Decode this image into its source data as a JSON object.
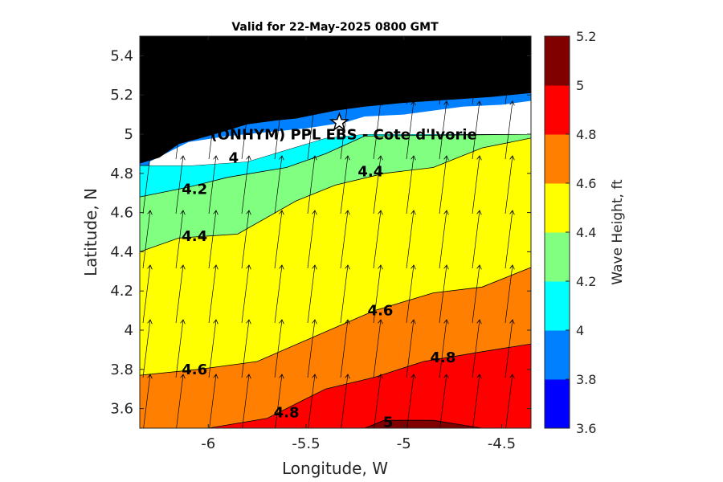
{
  "chart_data": {
    "type": "contour",
    "title": "Valid for 22-May-2025 0800 GMT",
    "xlabel": "Longitude, W",
    "ylabel": "Latitude, N",
    "colorbar_label": "Wave Height, ft",
    "xlim": [
      -6.35,
      -4.35
    ],
    "ylim": [
      3.5,
      5.5
    ],
    "x_ticks": [
      -6,
      -5.5,
      -5,
      -4.5
    ],
    "x_tick_labels": [
      "-6",
      "-5.5",
      "-5",
      "-4.5"
    ],
    "y_ticks": [
      3.6,
      3.8,
      4.0,
      4.2,
      4.4,
      4.6,
      4.8,
      5.0,
      5.2,
      5.4
    ],
    "y_tick_labels": [
      "3.6",
      "3.8",
      "4",
      "4.2",
      "4.4",
      "4.6",
      "4.8",
      "5",
      "5.2",
      "5.4"
    ],
    "colorbar": {
      "levels": [
        3.6,
        3.8,
        4.0,
        4.2,
        4.4,
        4.6,
        4.8,
        5.0,
        5.2
      ],
      "tick_labels": [
        "3.6",
        "3.8",
        "4",
        "4.2",
        "4.4",
        "4.6",
        "4.8",
        "5",
        "5.2"
      ],
      "colors": [
        "#0000ff",
        "#0080ff",
        "#00ffff",
        "#80ff80",
        "#ffff00",
        "#ff8000",
        "#ff0000",
        "#800000"
      ]
    },
    "land_color": "#000000",
    "nodata_color": "#ffffff",
    "contours": [
      {
        "level": 4.0,
        "x": [
          -6.35,
          -6.08,
          -5.8,
          -5.4,
          -5.2,
          -4.35
        ],
        "y": [
          4.84,
          4.84,
          4.86,
          4.98,
          5.0,
          5.0
        ]
      },
      {
        "level": 4.2,
        "x": [
          -6.35,
          -6.1,
          -5.9,
          -5.6,
          -5.4,
          -5.2,
          -4.35
        ],
        "y": [
          4.68,
          4.73,
          4.78,
          4.83,
          4.9,
          4.99,
          5.0
        ]
      },
      {
        "level": 4.4,
        "x": [
          -6.35,
          -6.15,
          -5.85,
          -5.55,
          -5.35,
          -5.1,
          -4.85,
          -4.6,
          -4.35
        ],
        "y": [
          4.4,
          4.47,
          4.49,
          4.66,
          4.74,
          4.8,
          4.83,
          4.93,
          4.98
        ]
      },
      {
        "level": 4.6,
        "x": [
          -6.35,
          -6.05,
          -5.75,
          -5.45,
          -5.15,
          -4.85,
          -4.6,
          -4.35
        ],
        "y": [
          3.77,
          3.8,
          3.84,
          3.97,
          4.1,
          4.19,
          4.22,
          4.32
        ]
      },
      {
        "level": 4.8,
        "x": [
          -6.35,
          -6.0,
          -5.7,
          -5.4,
          -5.15,
          -4.9,
          -4.6,
          -4.35
        ],
        "y": [
          3.5,
          3.5,
          3.55,
          3.7,
          3.76,
          3.84,
          3.89,
          3.93
        ]
      },
      {
        "level": 5.0,
        "x": [
          -5.2,
          -5.1,
          -4.85,
          -4.6,
          -4.35
        ],
        "y": [
          3.5,
          3.54,
          3.54,
          3.5,
          3.5
        ]
      }
    ],
    "coast": {
      "x": [
        -6.35,
        -6.25,
        -6.15,
        -6.0,
        -5.9,
        -5.8,
        -5.65,
        -5.55,
        -5.45,
        -5.35,
        -5.2,
        -5.0,
        -4.85,
        -4.7,
        -4.55,
        -4.35
      ],
      "y": [
        4.85,
        4.88,
        4.95,
        4.99,
        5.02,
        5.05,
        5.07,
        5.08,
        5.1,
        5.12,
        5.14,
        5.16,
        5.17,
        5.18,
        5.19,
        5.21
      ]
    },
    "nodata_zone": {
      "x": [
        -6.3,
        -6.1,
        -5.9,
        -5.5,
        -5.3,
        -5.2,
        -5.0,
        -4.7,
        -4.5,
        -4.35,
        -4.35,
        -4.6,
        -4.8,
        -5.0,
        -5.2,
        -5.4,
        -5.8,
        -6.08,
        -6.3
      ],
      "y": [
        4.86,
        4.96,
        4.99,
        5.03,
        5.06,
        5.09,
        5.1,
        5.14,
        5.15,
        5.17,
        5.0,
        5.0,
        5.0,
        5.0,
        5.0,
        4.98,
        4.86,
        4.84,
        4.84
      ]
    },
    "contour_labels": [
      {
        "text": "4",
        "x": -5.87,
        "y": 4.88
      },
      {
        "text": "4.2",
        "x": -6.07,
        "y": 4.72
      },
      {
        "text": "4.4",
        "x": -6.07,
        "y": 4.48
      },
      {
        "text": "4.4",
        "x": -5.17,
        "y": 4.81
      },
      {
        "text": "4.6",
        "x": -5.12,
        "y": 4.1
      },
      {
        "text": "4.6",
        "x": -6.07,
        "y": 3.8
      },
      {
        "text": "4.8",
        "x": -4.8,
        "y": 3.86
      },
      {
        "text": "4.8",
        "x": -5.6,
        "y": 3.58
      },
      {
        "text": "5",
        "x": -5.08,
        "y": 3.53
      }
    ],
    "site": {
      "name": "(ONHYM) PPL EBS  - Cote d'Ivorie",
      "x": -5.33,
      "y": 5.06
    }
  }
}
